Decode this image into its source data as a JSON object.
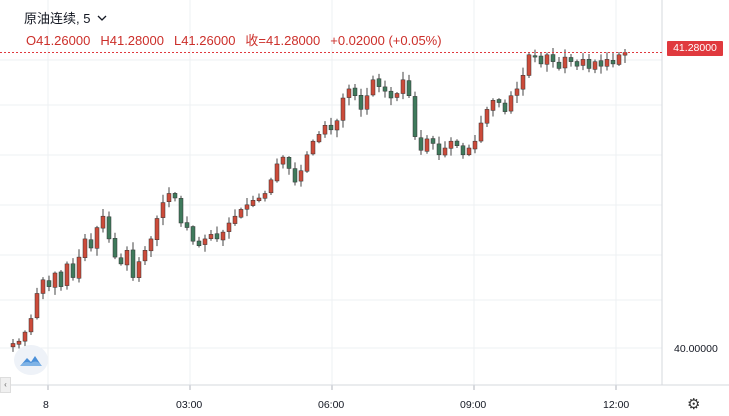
{
  "symbol": "原油连续",
  "interval": "5",
  "ohlc": {
    "open": "O41.26000",
    "high": "H41.28000",
    "low": "L41.26000",
    "close": "收=41.28000",
    "change": "+0.02000 (+0.05%)"
  },
  "last_price_label": "41.28000",
  "y_axis_labels": [
    "40.00000"
  ],
  "x_axis_labels": [
    "8",
    "03:00",
    "06:00",
    "09:00",
    "12:00"
  ],
  "colors": {
    "up": "#cc4b3a",
    "down": "#3f7a5c",
    "last_price": "#e0393e",
    "grid": "#eef0f3"
  },
  "icons": {
    "interval_menu": "chevron-down-icon",
    "settings": "gear-icon",
    "logo": "cloud-logo-icon"
  },
  "chart_data": {
    "type": "candlestick",
    "ylim": [
      39.98,
      41.3
    ],
    "y_ticks": [
      40.0
    ],
    "last_price": 41.28,
    "closes": [
      40.0,
      40.01,
      40.05,
      40.11,
      40.22,
      40.28,
      40.25,
      40.31,
      40.25,
      40.35,
      40.29,
      40.38,
      40.46,
      40.42,
      40.51,
      40.56,
      40.46,
      40.38,
      40.35,
      40.41,
      40.29,
      40.36,
      40.41,
      40.46,
      40.55,
      40.62,
      40.66,
      40.64,
      40.53,
      40.51,
      40.45,
      40.43,
      40.46,
      40.48,
      40.46,
      40.49,
      40.53,
      40.56,
      40.59,
      40.61,
      40.63,
      40.64,
      40.66,
      40.72,
      40.79,
      40.82,
      40.77,
      40.71,
      40.76,
      40.83,
      40.89,
      40.92,
      40.96,
      40.94,
      40.98,
      41.08,
      41.12,
      41.09,
      41.03,
      41.09,
      41.16,
      41.13,
      41.11,
      41.08,
      41.1,
      41.16,
      41.09,
      40.91,
      40.85,
      40.9,
      40.88,
      40.83,
      40.86,
      40.89,
      40.87,
      40.83,
      40.86,
      40.89,
      40.97,
      41.03,
      41.07,
      41.06,
      41.02,
      41.09,
      41.12,
      41.18,
      41.27,
      41.26,
      41.23,
      41.27,
      41.24,
      41.21,
      41.26,
      41.24,
      41.22,
      41.25,
      41.21,
      41.24,
      41.22,
      41.25,
      41.23,
      41.27,
      41.28
    ]
  }
}
